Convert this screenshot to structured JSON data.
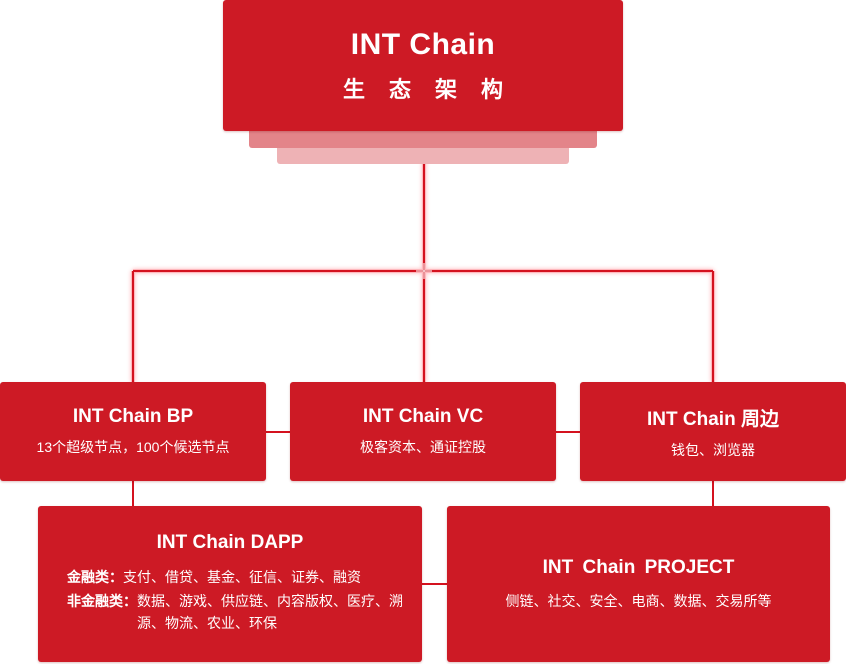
{
  "root": {
    "title": "INT Chain",
    "subtitle": "生态架构"
  },
  "nodes": {
    "bp": {
      "title": "INT Chain BP",
      "description": "13个超级节点，100个候选节点"
    },
    "vc": {
      "title": "INT Chain VC",
      "description": "极客资本、通证控股"
    },
    "periphery": {
      "title": "INT Chain 周边",
      "description": "钱包、浏览器"
    },
    "dapp": {
      "title": "INT Chain DAPP",
      "rows": [
        {
          "label": "金融类：",
          "value": "支付、借贷、基金、征信、证券、融资"
        },
        {
          "label": "非金融类：",
          "value": "数据、游戏、供应链、内容版权、医疗、溯源、物流、农业、环保"
        }
      ]
    },
    "project": {
      "title": "INT Chain  PROJECT",
      "description": "侧链、社交、安全、电商、数据、交易所等"
    }
  },
  "colors": {
    "box": "#cd1a25",
    "connector": "#d4121f",
    "glow": "#ff8a92"
  }
}
